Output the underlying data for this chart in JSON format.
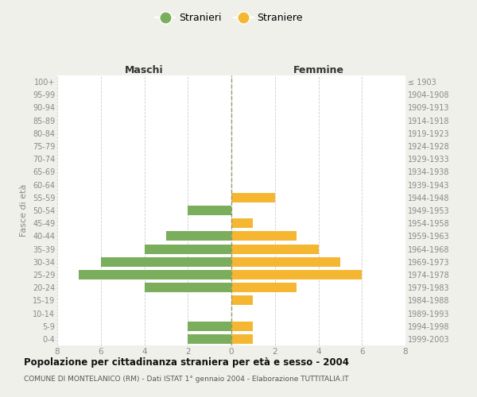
{
  "age_groups": [
    "100+",
    "95-99",
    "90-94",
    "85-89",
    "80-84",
    "75-79",
    "70-74",
    "65-69",
    "60-64",
    "55-59",
    "50-54",
    "45-49",
    "40-44",
    "35-39",
    "30-34",
    "25-29",
    "20-24",
    "15-19",
    "10-14",
    "5-9",
    "0-4"
  ],
  "birth_years": [
    "≤ 1903",
    "1904-1908",
    "1909-1913",
    "1914-1918",
    "1919-1923",
    "1924-1928",
    "1929-1933",
    "1934-1938",
    "1939-1943",
    "1944-1948",
    "1949-1953",
    "1954-1958",
    "1959-1963",
    "1964-1968",
    "1969-1973",
    "1974-1978",
    "1979-1983",
    "1984-1988",
    "1989-1993",
    "1994-1998",
    "1999-2003"
  ],
  "males": [
    0,
    0,
    0,
    0,
    0,
    0,
    0,
    0,
    0,
    0,
    2,
    0,
    3,
    4,
    6,
    7,
    4,
    0,
    0,
    2,
    2
  ],
  "females": [
    0,
    0,
    0,
    0,
    0,
    0,
    0,
    0,
    0,
    2,
    0,
    1,
    3,
    4,
    5,
    6,
    3,
    1,
    0,
    1,
    1
  ],
  "male_color": "#7aad5c",
  "female_color": "#f5b731",
  "legend_male": "Stranieri",
  "legend_female": "Straniere",
  "left_title": "Maschi",
  "right_title": "Femmine",
  "ylabel": "Fasce di età",
  "xlim": 8,
  "title": "Popolazione per cittadinanza straniera per età e sesso - 2004",
  "subtitle": "COMUNE DI MONTELANICO (RM) - Dati ISTAT 1° gennaio 2004 - Elaborazione TUTTITALIA.IT",
  "bg_color": "#ffffff",
  "outer_bg_color": "#f0f0eb",
  "grid_color": "#cccccc",
  "center_line_color": "#999966",
  "tick_color": "#888888",
  "title_color": "#111111",
  "subtitle_color": "#555555"
}
